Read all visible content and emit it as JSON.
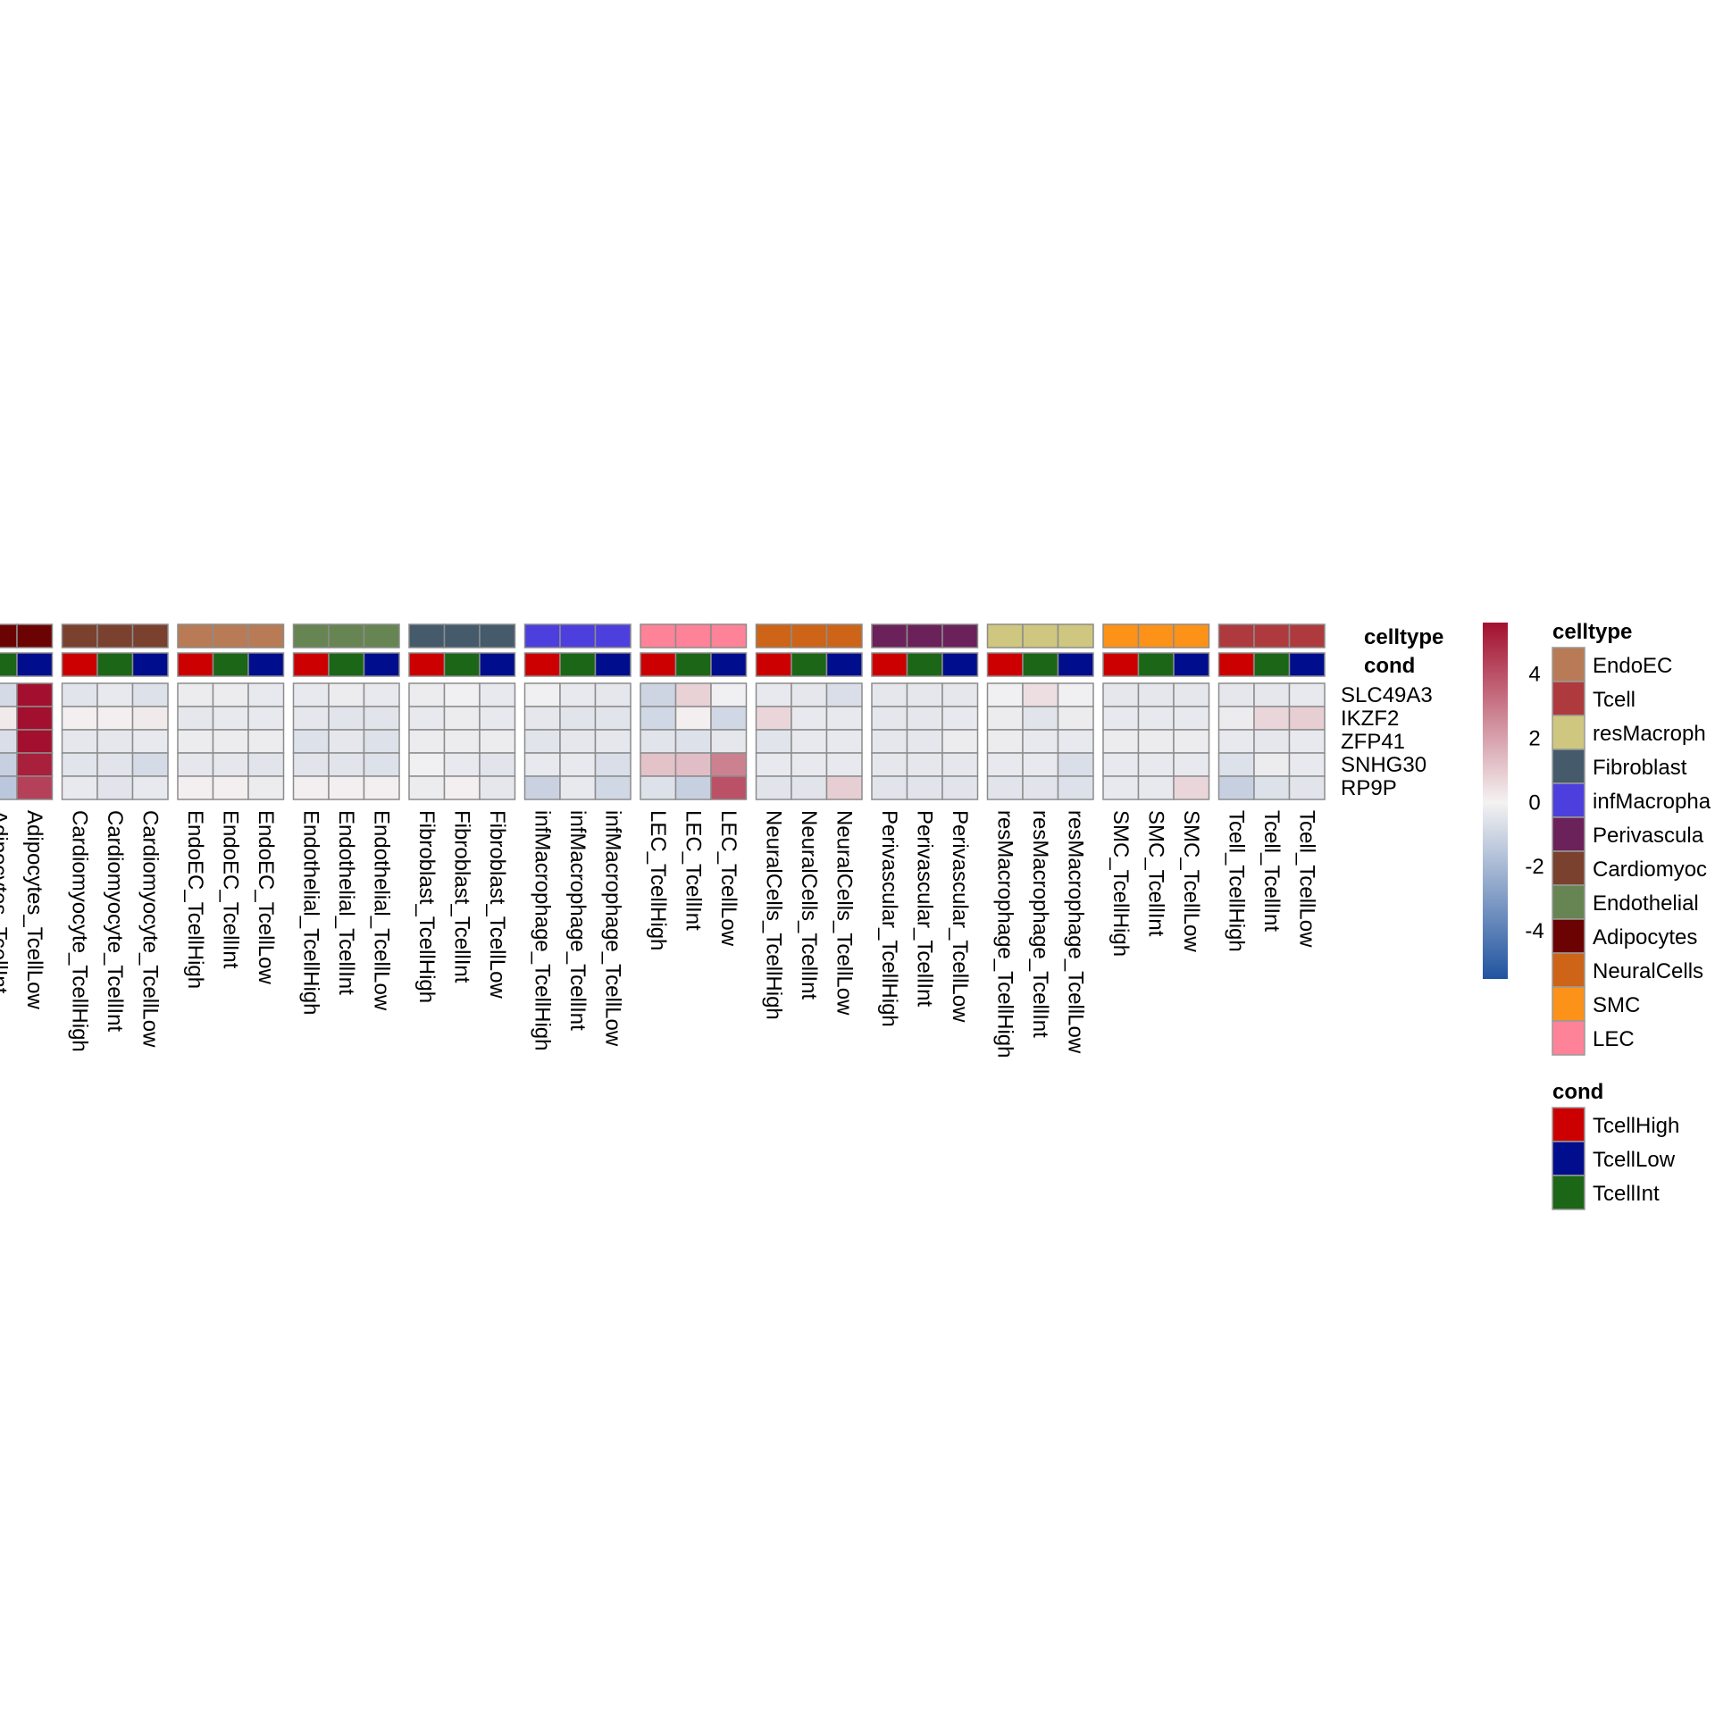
{
  "chart_data": {
    "type": "heatmap",
    "rows": [
      "SLC49A3",
      "IKZF2",
      "ZFP41",
      "SNHG30",
      "RP9P"
    ],
    "columns": [
      "Adipocytes_TcellInt",
      "Adipocytes_TcellLow",
      "Cardiomyocyte_TcellHigh",
      "Cardiomyocyte_TcellInt",
      "Cardiomyocyte_TcellLow",
      "EndoEC_TcellHigh",
      "EndoEC_TcellInt",
      "EndoEC_TcellLow",
      "Endothelial_TcellHigh",
      "Endothelial_TcellInt",
      "Endothelial_TcellLow",
      "Fibroblast_TcellHigh",
      "Fibroblast_TcellInt",
      "Fibroblast_TcellLow",
      "infMacrophage_TcellHigh",
      "infMacrophage_TcellInt",
      "infMacrophage_TcellLow",
      "LEC_TcellHigh",
      "LEC_TcellInt",
      "LEC_TcellLow",
      "NeuralCells_TcellHigh",
      "NeuralCells_TcellInt",
      "NeuralCells_TcellLow",
      "Perivascular_TcellHigh",
      "Perivascular_TcellInt",
      "Perivascular_TcellLow",
      "resMacrophage_TcellHigh",
      "resMacrophage_TcellInt",
      "resMacrophage_TcellLow",
      "SMC_TcellHigh",
      "SMC_TcellInt",
      "SMC_TcellLow",
      "Tcell_TcellHigh",
      "Tcell_TcellInt",
      "Tcell_TcellLow"
    ],
    "column_celltype": [
      "Adipocytes",
      "Adipocytes",
      "Cardiomyocyte",
      "Cardiomyocyte",
      "Cardiomyocyte",
      "EndoEC",
      "EndoEC",
      "EndoEC",
      "Endothelial",
      "Endothelial",
      "Endothelial",
      "Fibroblast",
      "Fibroblast",
      "Fibroblast",
      "infMacrophage",
      "infMacrophage",
      "infMacrophage",
      "LEC",
      "LEC",
      "LEC",
      "NeuralCells",
      "NeuralCells",
      "NeuralCells",
      "Perivascular",
      "Perivascular",
      "Perivascular",
      "resMacrophage",
      "resMacrophage",
      "resMacrophage",
      "SMC",
      "SMC",
      "SMC",
      "Tcell",
      "Tcell",
      "Tcell"
    ],
    "column_cond": [
      "TcellInt",
      "TcellLow",
      "TcellHigh",
      "TcellInt",
      "TcellLow",
      "TcellHigh",
      "TcellInt",
      "TcellLow",
      "TcellHigh",
      "TcellInt",
      "TcellLow",
      "TcellHigh",
      "TcellInt",
      "TcellLow",
      "TcellHigh",
      "TcellInt",
      "TcellLow",
      "TcellHigh",
      "TcellInt",
      "TcellLow",
      "TcellHigh",
      "TcellInt",
      "TcellLow",
      "TcellHigh",
      "TcellInt",
      "TcellLow",
      "TcellHigh",
      "TcellInt",
      "TcellLow",
      "TcellHigh",
      "TcellInt",
      "TcellLow",
      "TcellHigh",
      "TcellInt",
      "TcellLow"
    ],
    "values": [
      [
        -0.8,
        5.6,
        -0.5,
        -0.3,
        -0.6,
        -0.2,
        -0.2,
        -0.3,
        -0.3,
        -0.2,
        -0.3,
        -0.2,
        -0.1,
        -0.3,
        -0.1,
        -0.3,
        -0.4,
        -1.0,
        0.8,
        -0.1,
        -0.3,
        -0.4,
        -0.7,
        -0.4,
        -0.4,
        -0.4,
        -0.1,
        0.5,
        -0.1,
        -0.4,
        -0.4,
        -0.4,
        -0.4,
        -0.4,
        -0.3
      ],
      [
        0.2,
        5.6,
        0.1,
        0.1,
        0.2,
        -0.4,
        -0.3,
        -0.3,
        -0.4,
        -0.5,
        -0.5,
        -0.3,
        -0.2,
        -0.3,
        -0.4,
        -0.5,
        -0.5,
        -0.9,
        0.1,
        -0.9,
        0.7,
        -0.3,
        -0.3,
        -0.4,
        -0.4,
        -0.3,
        -0.2,
        -0.5,
        -0.2,
        -0.3,
        -0.3,
        -0.3,
        -0.2,
        0.7,
        0.9
      ],
      [
        -0.7,
        5.6,
        -0.4,
        -0.4,
        -0.3,
        -0.2,
        -0.2,
        -0.2,
        -0.6,
        -0.4,
        -0.6,
        -0.2,
        -0.2,
        -0.2,
        -0.5,
        -0.4,
        -0.4,
        -0.5,
        -0.6,
        -0.4,
        -0.5,
        -0.3,
        -0.3,
        -0.4,
        -0.4,
        -0.2,
        -0.2,
        -0.3,
        -0.3,
        -0.2,
        -0.2,
        -0.2,
        -0.3,
        -0.4,
        -0.3
      ],
      [
        -1.2,
        5.2,
        -0.5,
        -0.5,
        -0.8,
        -0.4,
        -0.4,
        -0.5,
        -0.5,
        -0.5,
        -0.6,
        -0.1,
        -0.3,
        -0.5,
        -0.3,
        -0.3,
        -0.7,
        1.2,
        1.3,
        2.8,
        -0.3,
        -0.3,
        -0.3,
        -0.4,
        -0.4,
        -0.4,
        -0.3,
        -0.3,
        -0.7,
        -0.3,
        -0.3,
        -0.3,
        -0.6,
        -0.2,
        -0.3
      ],
      [
        -1.5,
        4.4,
        -0.3,
        -0.5,
        -0.3,
        0.1,
        0.1,
        -0.2,
        0.1,
        0.1,
        0.1,
        -0.2,
        0.1,
        -0.4,
        -1.1,
        -0.3,
        -0.9,
        -0.6,
        -1.2,
        4.0,
        -0.5,
        -0.5,
        0.9,
        -0.5,
        -0.5,
        -0.5,
        -0.5,
        -0.5,
        -0.6,
        -0.3,
        -0.3,
        0.7,
        -1.2,
        -0.6,
        -0.5
      ]
    ],
    "color_scale": {
      "breaks": [
        -5.5,
        0,
        5.6
      ],
      "colors": [
        "#2054a0",
        "#f4f2f2",
        "#a3102f"
      ],
      "ticks": [
        4,
        2,
        0,
        -2,
        -4
      ],
      "tick_labels": [
        "4",
        "2",
        "0",
        "-2",
        "-4"
      ]
    },
    "annotation_labels": {
      "celltype": "celltype",
      "cond": "cond"
    },
    "legend": {
      "celltype": {
        "title": "celltype",
        "items": [
          {
            "label": "EndoEC",
            "color": "#B87B55"
          },
          {
            "label": "Tcell",
            "color": "#AE3A3E"
          },
          {
            "label": "resMacroph",
            "color": "#CFC77F"
          },
          {
            "label": "Fibroblast",
            "color": "#455A6B"
          },
          {
            "label": "infMacropha",
            "color": "#4D3FDD"
          },
          {
            "label": "Perivascula",
            "color": "#6B2159"
          },
          {
            "label": "Cardiomyoc",
            "color": "#7A412F"
          },
          {
            "label": "Endothelial",
            "color": "#678552"
          },
          {
            "label": "Adipocytes",
            "color": "#6B0303"
          },
          {
            "label": "NeuralCells",
            "color": "#CD6417"
          },
          {
            "label": "SMC",
            "color": "#FD9218"
          },
          {
            "label": "LEC",
            "color": "#FE8298"
          }
        ]
      },
      "cond": {
        "title": "cond",
        "items": [
          {
            "label": "TcellHigh",
            "color": "#CC0000"
          },
          {
            "label": "TcellLow",
            "color": "#000D8D"
          },
          {
            "label": "TcellInt",
            "color": "#1B6617"
          }
        ]
      }
    }
  }
}
